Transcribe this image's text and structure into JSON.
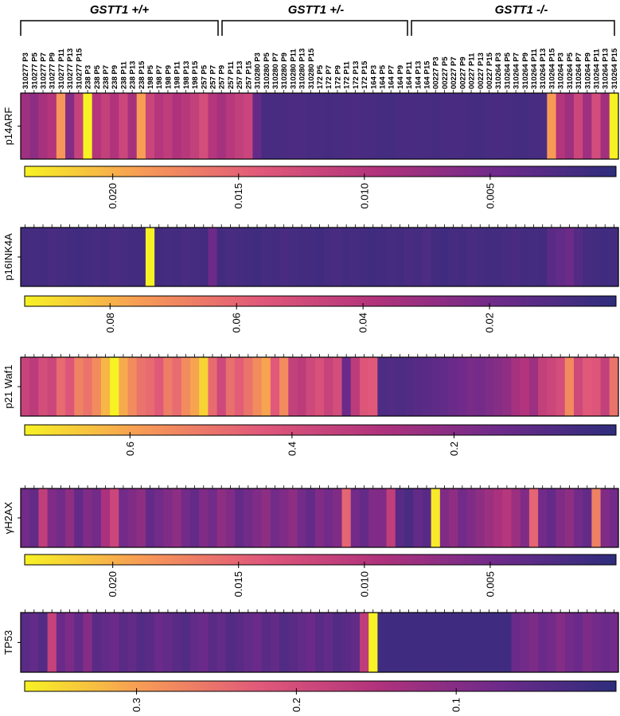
{
  "chart_data": {
    "type": "heatmap",
    "title": "",
    "colormap": [
      "#f7f224",
      "#f79a56",
      "#e0587a",
      "#b0327c",
      "#6e2a8a",
      "#2e2d7c"
    ],
    "groups": [
      {
        "label": "GSTT1 +/+",
        "start": 0,
        "end": 21
      },
      {
        "label": "GSTT1 +/-",
        "start": 22,
        "end": 41
      },
      {
        "label": "GSTT1 -/-",
        "start": 42,
        "end": 63
      }
    ],
    "samples": [
      "310277 P3",
      "310277 P5",
      "310277 P7",
      "310277 P9",
      "310277 P11",
      "310277 P13",
      "310277 P15",
      "238 P3",
      "238 P5",
      "238 P7",
      "238 P9",
      "238 P11",
      "238 P13",
      "238 P15",
      "198 P5",
      "198 P7",
      "198 P9",
      "198 P11",
      "198 P13",
      "198 P15",
      "257 P5",
      "257 P7",
      "257 P9",
      "257 P11",
      "257 P13",
      "257 P15",
      "310280 P3",
      "310280 P5",
      "310280 P7",
      "310280 P9",
      "310280 P11",
      "310280 P13",
      "310280 P15",
      "172 P5",
      "172 P7",
      "172 P9",
      "172 P11",
      "172 P13",
      "172 P15",
      "164 P3",
      "164 P5",
      "164 P7",
      "164 P9",
      "164 P11",
      "164 P13",
      "164 P15",
      "00227 P3",
      "00227 P5",
      "00227 P7",
      "00227 P9",
      "00227 P11",
      "00227 P13",
      "00227 P15",
      "310264 P3",
      "310264 P5",
      "310264 P7",
      "310264 P9",
      "310264 P11",
      "310264 P13",
      "310264 P15",
      "310264 P3",
      "310264 P5",
      "310264 P7",
      "310264 P9",
      "310264 P11",
      "310264 P13",
      "310264 P15"
    ],
    "heatmaps": [
      {
        "gene": "p14ARF",
        "cbar_max": 0.0235,
        "cbar_ticks": [
          0.02,
          0.015,
          0.01,
          0.005
        ],
        "values": [
          0.0082,
          0.007,
          0.0088,
          0.0098,
          0.0185,
          0.0062,
          0.0115,
          0.024,
          0.0098,
          0.0112,
          0.0095,
          0.012,
          0.0088,
          0.019,
          0.0118,
          0.0099,
          0.0108,
          0.0094,
          0.0102,
          0.0112,
          0.0129,
          0.0099,
          0.0087,
          0.0101,
          0.0111,
          0.0118,
          0.004,
          0.0018,
          0.0019,
          0.002,
          0.0021,
          0.0022,
          0.0019,
          0.0018,
          0.0017,
          0.0019,
          0.002,
          0.0021,
          0.0019,
          0.0018,
          0.0017,
          0.0016,
          0.0018,
          0.002,
          0.0019,
          0.0018,
          0.0017,
          0.0019,
          0.002,
          0.0018,
          0.0017,
          0.0016,
          0.0019,
          0.002,
          0.0018,
          0.0017,
          0.0016,
          0.0019,
          0.0019,
          0.0188,
          0.0098,
          0.0081,
          0.012,
          0.0082,
          0.0127,
          0.0085,
          0.0236
        ]
      },
      {
        "gene": "p16INK4A",
        "cbar_max": 0.0935,
        "cbar_ticks": [
          0.08,
          0.06,
          0.04,
          0.02
        ],
        "values": [
          0.006,
          0.007,
          0.006,
          0.008,
          0.007,
          0.006,
          0.005,
          0.006,
          0.007,
          0.006,
          0.008,
          0.007,
          0.006,
          0.006,
          0.095,
          0.006,
          0.007,
          0.006,
          0.008,
          0.007,
          0.006,
          0.018,
          0.006,
          0.008,
          0.007,
          0.006,
          0.005,
          0.007,
          0.006,
          0.008,
          0.007,
          0.006,
          0.006,
          0.005,
          0.007,
          0.008,
          0.006,
          0.007,
          0.006,
          0.005,
          0.006,
          0.007,
          0.006,
          0.008,
          0.007,
          0.009,
          0.006,
          0.005,
          0.007,
          0.006,
          0.008,
          0.007,
          0.006,
          0.006,
          0.007,
          0.008,
          0.006,
          0.007,
          0.006,
          0.013,
          0.015,
          0.018,
          0.011,
          0.007,
          0.006,
          0.005,
          0.006
        ]
      },
      {
        "gene": "p21 Waf1",
        "cbar_max": 0.73,
        "cbar_ticks": [
          0.6,
          0.4,
          0.2
        ],
        "values": [
          0.36,
          0.33,
          0.4,
          0.37,
          0.48,
          0.43,
          0.53,
          0.5,
          0.55,
          0.63,
          0.76,
          0.61,
          0.55,
          0.5,
          0.48,
          0.44,
          0.52,
          0.48,
          0.55,
          0.6,
          0.68,
          0.48,
          0.38,
          0.49,
          0.45,
          0.5,
          0.55,
          0.6,
          0.44,
          0.55,
          0.35,
          0.33,
          0.38,
          0.41,
          0.36,
          0.4,
          0.14,
          0.33,
          0.43,
          0.44,
          0.07,
          0.08,
          0.07,
          0.08,
          0.09,
          0.1,
          0.11,
          0.12,
          0.14,
          0.15,
          0.17,
          0.16,
          0.18,
          0.2,
          0.22,
          0.27,
          0.3,
          0.25,
          0.35,
          0.37,
          0.4,
          0.55,
          0.38,
          0.44,
          0.43,
          0.35,
          0.5
        ]
      },
      {
        "gene": "γH2AX",
        "cbar_max": 0.0235,
        "cbar_ticks": [
          0.02,
          0.015,
          0.01,
          0.005
        ],
        "values": [
          0.005,
          0.004,
          0.011,
          0.006,
          0.005,
          0.007,
          0.004,
          0.006,
          0.005,
          0.009,
          0.012,
          0.005,
          0.006,
          0.007,
          0.004,
          0.005,
          0.006,
          0.007,
          0.005,
          0.004,
          0.006,
          0.005,
          0.007,
          0.006,
          0.004,
          0.005,
          0.006,
          0.007,
          0.005,
          0.006,
          0.007,
          0.005,
          0.004,
          0.006,
          0.005,
          0.006,
          0.015,
          0.005,
          0.004,
          0.006,
          0.006,
          0.011,
          0.003,
          0.002,
          0.004,
          0.003,
          0.023,
          0.006,
          0.007,
          0.005,
          0.006,
          0.007,
          0.008,
          0.009,
          0.01,
          0.008,
          0.006,
          0.015,
          0.005,
          0.004,
          0.006,
          0.007,
          0.005,
          0.004,
          0.017,
          0.006,
          0.005
        ]
      },
      {
        "gene": "TP53",
        "cbar_max": 0.37,
        "cbar_ticks": [
          0.3,
          0.2,
          0.1
        ],
        "values": [
          0.05,
          0.06,
          0.04,
          0.18,
          0.07,
          0.09,
          0.06,
          0.1,
          0.05,
          0.06,
          0.07,
          0.05,
          0.06,
          0.04,
          0.05,
          0.07,
          0.06,
          0.05,
          0.04,
          0.06,
          0.07,
          0.05,
          0.06,
          0.04,
          0.05,
          0.06,
          0.07,
          0.05,
          0.06,
          0.04,
          0.05,
          0.06,
          0.07,
          0.05,
          0.06,
          0.04,
          0.05,
          0.06,
          0.17,
          0.37,
          0.02,
          0.02,
          0.02,
          0.02,
          0.02,
          0.02,
          0.02,
          0.02,
          0.02,
          0.02,
          0.02,
          0.02,
          0.02,
          0.02,
          0.02,
          0.07,
          0.08,
          0.09,
          0.07,
          0.08,
          0.1,
          0.08,
          0.07,
          0.09,
          0.08,
          0.07,
          0.08
        ]
      }
    ]
  }
}
